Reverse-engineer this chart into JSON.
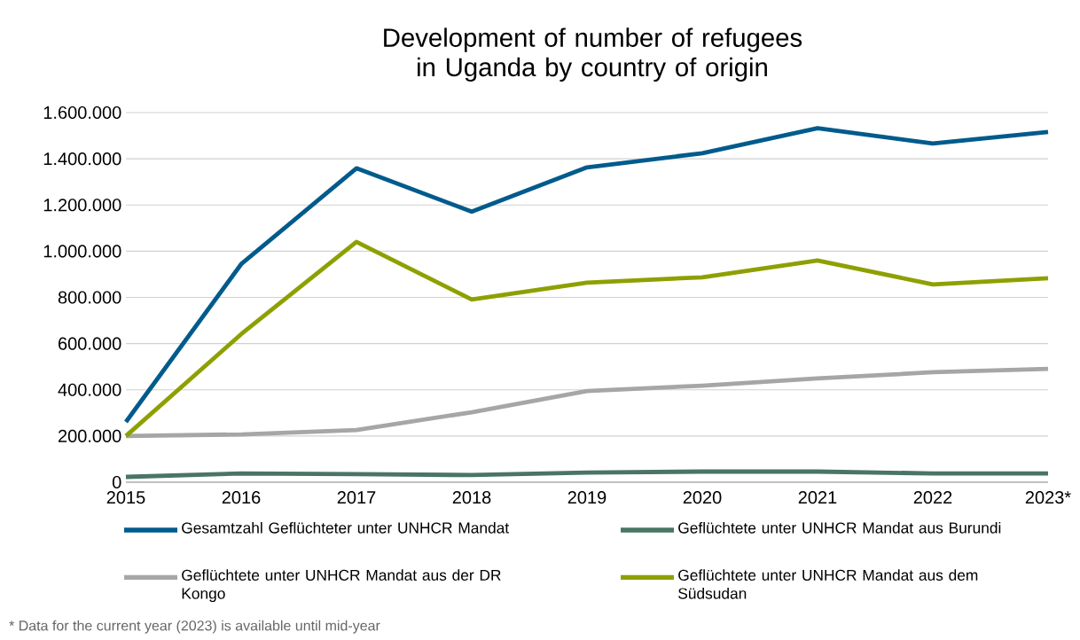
{
  "chart_data": {
    "type": "line",
    "title": "Development of number of refugees in Uganda by country of origin",
    "categories": [
      "2015",
      "2016",
      "2017",
      "2018",
      "2019",
      "2020",
      "2021",
      "2022",
      "2023*"
    ],
    "series": [
      {
        "name": "Gesamtzahl Geflüchteter unter UNHCR Mandat",
        "color": "#005b8c",
        "values": [
          261000,
          944000,
          1359000,
          1171000,
          1363000,
          1424000,
          1532000,
          1466000,
          1516000
        ]
      },
      {
        "name": "Geflüchtete unter UNHCR Mandat aus Burundi",
        "color": "#4a7564",
        "values": [
          23000,
          38000,
          35000,
          31000,
          42000,
          46000,
          46000,
          38000,
          38000
        ]
      },
      {
        "name": "Geflüchtete unter UNHCR Mandat aus der DR Kongo",
        "color": "#a6a6a6",
        "values": [
          200000,
          207000,
          226000,
          303000,
          395000,
          418000,
          449000,
          476000,
          491000
        ]
      },
      {
        "name": "Geflüchtete unter UNHCR Mandat aus dem Südsudan",
        "color": "#8ea000",
        "values": [
          200000,
          641000,
          1040000,
          791000,
          864000,
          887000,
          960000,
          856000,
          883000
        ]
      }
    ],
    "ylim": [
      0,
      1600000
    ],
    "yticks": [
      {
        "value": 0,
        "label": "0"
      },
      {
        "value": 200000,
        "label": "200.000"
      },
      {
        "value": 400000,
        "label": "400.000"
      },
      {
        "value": 600000,
        "label": "600.000"
      },
      {
        "value": 800000,
        "label": "800.000"
      },
      {
        "value": 1000000,
        "label": "1.000.000"
      },
      {
        "value": 1200000,
        "label": "1.200.000"
      },
      {
        "value": 1400000,
        "label": "1.400.000"
      },
      {
        "value": 1600000,
        "label": "1.600.000"
      }
    ],
    "grid": "y",
    "legend": "bottom",
    "marker": "none",
    "line_style": "solid",
    "annotations": [
      "* Data for the current year (2023) is available until mid-year"
    ]
  }
}
